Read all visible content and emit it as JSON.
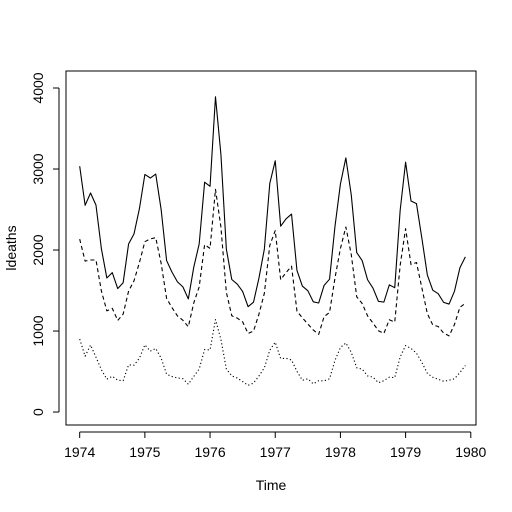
{
  "chart_data": {
    "type": "line",
    "title": "",
    "xlabel": "Time",
    "ylabel": "ldeaths",
    "xlim": [
      1973.79,
      1980.08
    ],
    "ylim": [
      -160,
      4210
    ],
    "x_ticks": [
      1974,
      1975,
      1976,
      1977,
      1978,
      1979,
      1980
    ],
    "x_tick_labels": [
      "1974",
      "1975",
      "1976",
      "1977",
      "1978",
      "1979",
      "1980"
    ],
    "y_ticks": [
      0,
      1000,
      2000,
      3000,
      4000
    ],
    "y_tick_labels": [
      "0",
      "1000",
      "2000",
      "3000",
      "4000"
    ],
    "x_start": 1974,
    "x_step_per_point": 0.083333,
    "grid": false,
    "legend": "none",
    "series": [
      {
        "line_style": "solid",
        "values": [
          3035,
          2552,
          2704,
          2554,
          2014,
          1655,
          1721,
          1524,
          1596,
          2074,
          2199,
          2512,
          2933,
          2889,
          2938,
          2497,
          1870,
          1726,
          1607,
          1545,
          1396,
          1787,
          2076,
          2837,
          2787,
          3891,
          3179,
          2011,
          1636,
          1580,
          1489,
          1300,
          1356,
          1653,
          2013,
          2823,
          3102,
          2294,
          2385,
          2444,
          1748,
          1554,
          1498,
          1361,
          1346,
          1564,
          1640,
          2293,
          2815,
          3137,
          2679,
          1969,
          1870,
          1633,
          1529,
          1366,
          1357,
          1570,
          1535,
          2491,
          3084,
          2605,
          2573,
          2143,
          1693,
          1504,
          1461,
          1354,
          1333,
          1492,
          1781,
          1915
        ]
      },
      {
        "line_style": "dashed",
        "values": [
          2134,
          1863,
          1877,
          1877,
          1492,
          1249,
          1280,
          1131,
          1209,
          1492,
          1621,
          1846,
          2103,
          2137,
          2153,
          1833,
          1403,
          1288,
          1186,
          1133,
          1053,
          1347,
          1545,
          2066,
          2020,
          2750,
          2283,
          1479,
          1189,
          1160,
          1113,
          970,
          999,
          1208,
          1467,
          2059,
          2240,
          1634,
          1722,
          1801,
          1246,
          1162,
          1087,
          1013,
          959,
          1179,
          1229,
          1655,
          2019,
          2284,
          1942,
          1423,
          1340,
          1187,
          1098,
          1004,
          970,
          1140,
          1110,
          1812,
          2263,
          1820,
          1846,
          1531,
          1215,
          1075,
          1056,
          975,
          940,
          1081,
          1294,
          1341
        ]
      },
      {
        "line_style": "dotted",
        "values": [
          901,
          689,
          827,
          677,
          522,
          406,
          441,
          393,
          387,
          582,
          578,
          666,
          830,
          752,
          785,
          664,
          467,
          438,
          421,
          412,
          343,
          440,
          531,
          771,
          767,
          1141,
          896,
          532,
          447,
          420,
          376,
          330,
          357,
          445,
          546,
          764,
          862,
          660,
          663,
          643,
          502,
          392,
          411,
          348,
          387,
          385,
          411,
          638,
          796,
          853,
          737,
          546,
          530,
          446,
          431,
          362,
          387,
          430,
          425,
          679,
          821,
          785,
          727,
          612,
          478,
          429,
          405,
          379,
          393,
          411,
          487,
          574
        ]
      }
    ]
  }
}
